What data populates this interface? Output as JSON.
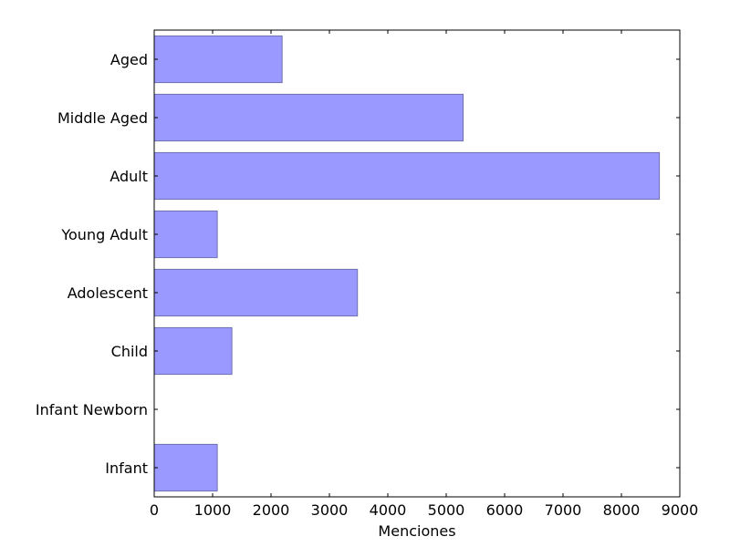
{
  "chart_data": {
    "type": "bar",
    "orientation": "horizontal",
    "title": "",
    "xlabel": "Menciones",
    "ylabel": "",
    "xlim": [
      0,
      9000
    ],
    "xticks": [
      "0",
      "1000",
      "2000",
      "3000",
      "4000",
      "5000",
      "6000",
      "7000",
      "8000",
      "9000"
    ],
    "categories": [
      "Infant",
      "Infant Newborn",
      "Child",
      "Adolescent",
      "Young Adult",
      "Adult",
      "Middle Aged",
      "Aged"
    ],
    "values": [
      1080,
      0,
      1330,
      3480,
      1080,
      8650,
      5290,
      2190
    ],
    "bar_color": "#9999ff",
    "bar_edge_color": "#6f6fb0",
    "grid": false,
    "legend": "none"
  }
}
